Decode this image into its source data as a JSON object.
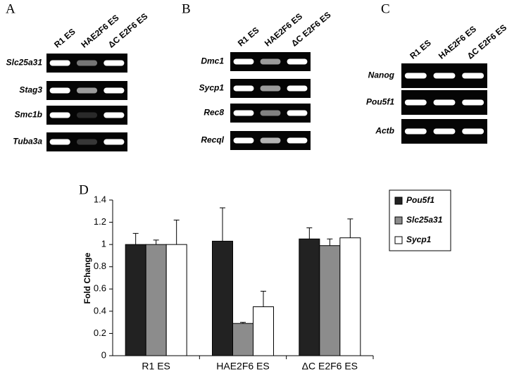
{
  "panels": [
    {
      "letter": "A",
      "lanes": [
        "R1 ES",
        "HAE2F6 ES",
        "ΔC E2F6 ES"
      ],
      "genes": [
        "Slc25a31",
        "Stag3",
        "Smc1b",
        "Tuba3a"
      ]
    },
    {
      "letter": "B",
      "lanes": [
        "R1 ES",
        "HAE2F6 ES",
        "ΔC E2F6 ES"
      ],
      "genes": [
        "Dmc1",
        "Sycp1",
        "Rec8",
        "Recql"
      ]
    },
    {
      "letter": "C",
      "lanes": [
        "R1 ES",
        "HAE2F6 ES",
        "ΔC E2F6 ES"
      ],
      "genes": [
        "Nanog",
        "Pou5f1",
        "Actb"
      ]
    }
  ],
  "chart_data": {
    "type": "bar",
    "letter": "D",
    "y_label": "Fold Change",
    "categories": [
      "R1 ES",
      "HAE2F6 ES",
      "ΔC E2F6 ES"
    ],
    "series": [
      {
        "name": "Pou5f1",
        "color": "#222222",
        "values": [
          1,
          1.03,
          1.05
        ],
        "errors": [
          0.1,
          0.3,
          0.1
        ]
      },
      {
        "name": "Slc25a31",
        "color": "#8c8c8c",
        "values": [
          1,
          0.29,
          0.99
        ],
        "errors": [
          0.04,
          0.01,
          0.06
        ]
      },
      {
        "name": "Sycp1",
        "color": "#ffffff",
        "values": [
          1,
          0.44,
          1.06
        ],
        "errors": [
          0.22,
          0.14,
          0.17
        ]
      }
    ],
    "ylim": [
      0,
      1.4
    ],
    "yticks": [
      0,
      0.2,
      0.4,
      0.6,
      0.8,
      1,
      1.2,
      1.4
    ]
  }
}
